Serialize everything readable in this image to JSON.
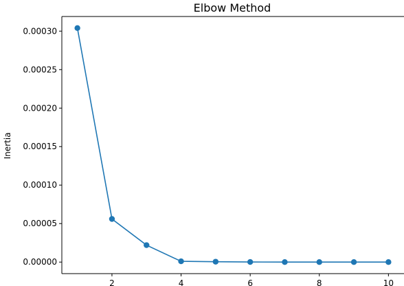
{
  "chart_data": {
    "type": "line",
    "title": "Elbow Method",
    "xlabel": "",
    "ylabel": "Inertia",
    "x": [
      1,
      2,
      3,
      4,
      5,
      6,
      7,
      8,
      9,
      10
    ],
    "series": [
      {
        "values": [
          0.000304,
          5.6e-05,
          2.2e-05,
          1e-06,
          5e-07,
          1e-07,
          0.0,
          0.0,
          0.0,
          0.0
        ]
      }
    ],
    "xticks": [
      2,
      4,
      6,
      8,
      10
    ],
    "yticks": [
      0.0,
      5e-05,
      0.0001,
      0.00015,
      0.0002,
      0.00025,
      0.0003
    ],
    "ytick_labels": [
      "0.00000",
      "0.00005",
      "0.00010",
      "0.00015",
      "0.00020",
      "0.00025",
      "0.00030"
    ],
    "xlim": [
      0.55,
      10.45
    ],
    "ylim": [
      -1.5e-05,
      0.000319
    ],
    "grid": false,
    "line_color": "#1f77b4",
    "marker": "circle"
  }
}
